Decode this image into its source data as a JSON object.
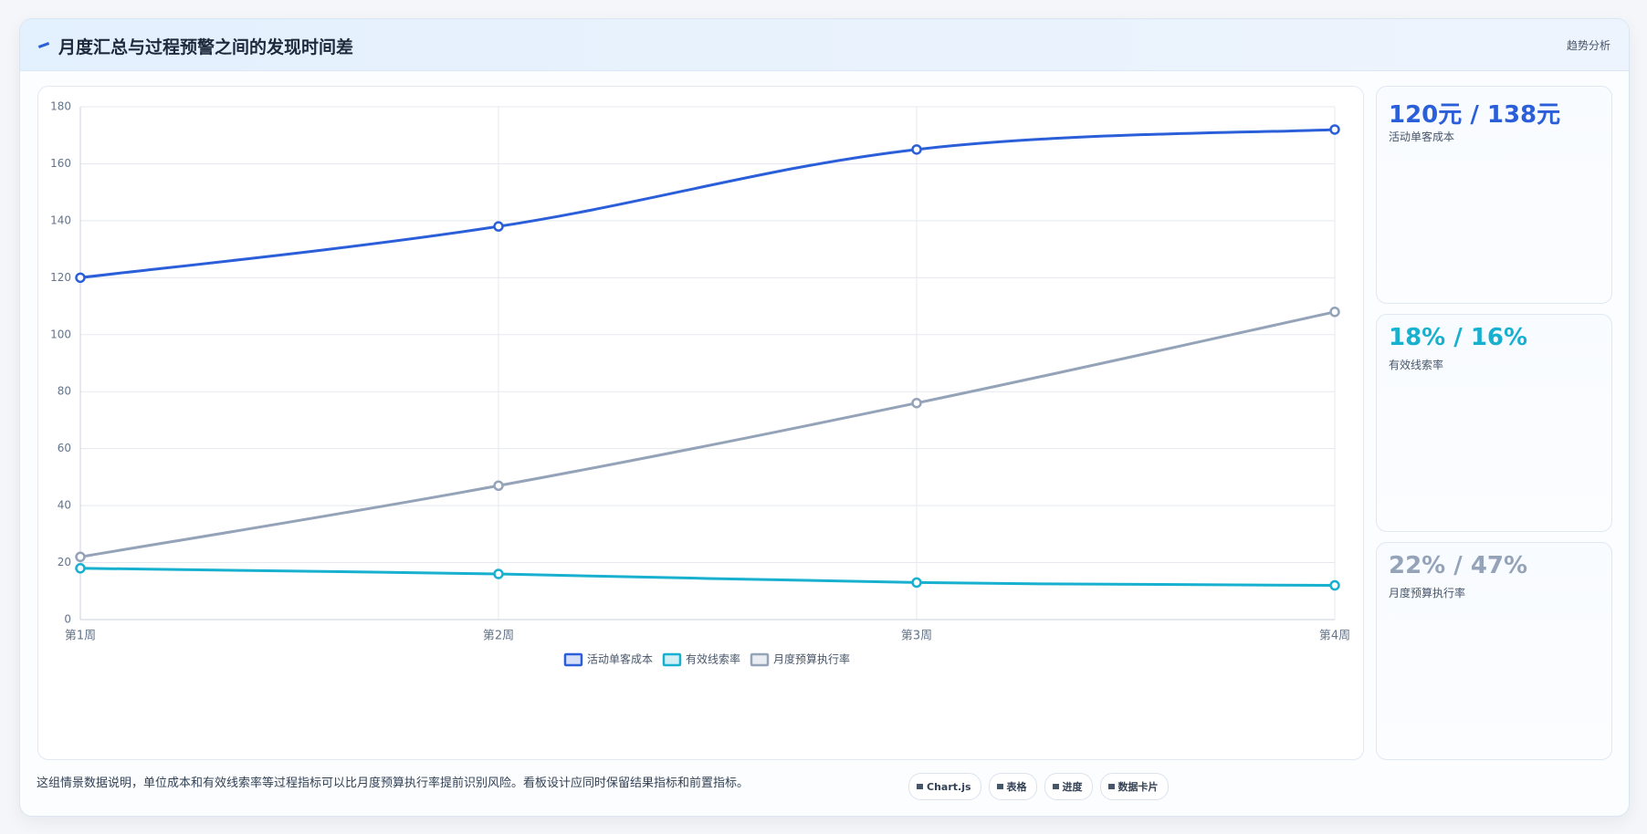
{
  "header": {
    "title": "月度汇总与过程预警之间的发现时间差",
    "badge": "趋势分析"
  },
  "chart_data": {
    "type": "line",
    "categories": [
      "第1周",
      "第2周",
      "第3周",
      "第4周"
    ],
    "series": [
      {
        "name": "活动单客成本",
        "color": "#2b5fd9",
        "values": [
          120,
          138,
          165,
          172
        ]
      },
      {
        "name": "有效线索率",
        "color": "#18b0cf",
        "values": [
          18,
          16,
          13,
          12
        ]
      },
      {
        "name": "月度预算执行率",
        "color": "#94a3b8",
        "values": [
          22,
          47,
          76,
          108
        ]
      }
    ],
    "ylim": [
      0,
      180
    ],
    "yticks": [
      0,
      20,
      40,
      60,
      80,
      100,
      120,
      140,
      160,
      180
    ],
    "grid": true,
    "legend": "bottom"
  },
  "kpis": [
    {
      "value": "120元 / 138元",
      "label": "活动单客成本",
      "color": "#2b5fd9"
    },
    {
      "value": "18% / 16%",
      "label": "有效线索率",
      "color": "#18b0cf"
    },
    {
      "value": "22% / 47%",
      "label": "月度预算执行率",
      "color": "#94a3b8"
    }
  ],
  "footer": {
    "note": "这组情景数据说明，单位成本和有效线索率等过程指标可以比月度预算执行率提前识别风险。看板设计应同时保留结果指标和前置指标。",
    "buttons": [
      "Chart.js",
      "表格",
      "进度",
      "数据卡片"
    ]
  }
}
